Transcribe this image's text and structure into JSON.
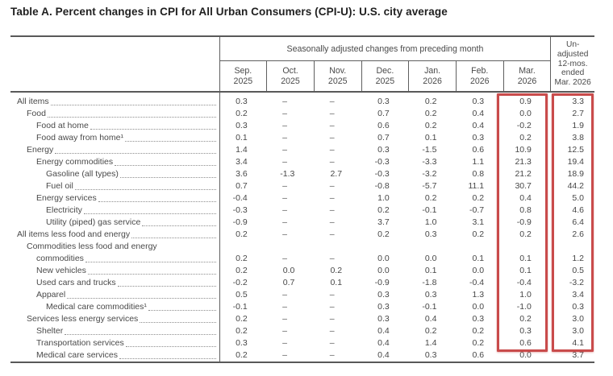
{
  "title": "Table A. Percent changes in CPI for All Urban Consumers (CPI-U): U.S. city average",
  "table": {
    "span_header": "Seasonally adjusted changes from preceding month",
    "unadjusted_header": "Un-\nadjusted\n12-mos.\nended\nMar. 2026",
    "months": [
      {
        "abbr": "Sep.",
        "year": "2025"
      },
      {
        "abbr": "Oct.",
        "year": "2025"
      },
      {
        "abbr": "Nov.",
        "year": "2025"
      },
      {
        "abbr": "Dec.",
        "year": "2025"
      },
      {
        "abbr": "Jan.",
        "year": "2026"
      },
      {
        "abbr": "Feb.",
        "year": "2026"
      },
      {
        "abbr": "Mar.",
        "year": "2026"
      }
    ],
    "rows": [
      {
        "label": "All items",
        "indent": 0,
        "values": [
          "0.3",
          "–",
          "–",
          "0.3",
          "0.2",
          "0.3",
          "0.9",
          "3.3"
        ]
      },
      {
        "label": "Food",
        "indent": 1,
        "values": [
          "0.2",
          "–",
          "–",
          "0.7",
          "0.2",
          "0.4",
          "0.0",
          "2.7"
        ]
      },
      {
        "label": "Food at home",
        "indent": 2,
        "values": [
          "0.3",
          "–",
          "–",
          "0.6",
          "0.2",
          "0.4",
          "-0.2",
          "1.9"
        ]
      },
      {
        "label": "Food away from home¹",
        "indent": 2,
        "values": [
          "0.1",
          "–",
          "–",
          "0.7",
          "0.1",
          "0.3",
          "0.2",
          "3.8"
        ]
      },
      {
        "label": "Energy",
        "indent": 1,
        "values": [
          "1.4",
          "–",
          "–",
          "0.3",
          "-1.5",
          "0.6",
          "10.9",
          "12.5"
        ]
      },
      {
        "label": "Energy commodities",
        "indent": 2,
        "values": [
          "3.4",
          "–",
          "–",
          "-0.3",
          "-3.3",
          "1.1",
          "21.3",
          "19.4"
        ]
      },
      {
        "label": "Gasoline (all types)",
        "indent": 3,
        "values": [
          "3.6",
          "-1.3",
          "2.7",
          "-0.3",
          "-3.2",
          "0.8",
          "21.2",
          "18.9"
        ]
      },
      {
        "label": "Fuel oil",
        "indent": 3,
        "values": [
          "0.7",
          "–",
          "–",
          "-0.8",
          "-5.7",
          "11.1",
          "30.7",
          "44.2"
        ]
      },
      {
        "label": "Energy services",
        "indent": 2,
        "values": [
          "-0.4",
          "–",
          "–",
          "1.0",
          "0.2",
          "0.2",
          "0.4",
          "5.0"
        ]
      },
      {
        "label": "Electricity",
        "indent": 3,
        "values": [
          "-0.3",
          "–",
          "–",
          "0.2",
          "-0.1",
          "-0.7",
          "0.8",
          "4.6"
        ]
      },
      {
        "label": "Utility (piped) gas service",
        "indent": 3,
        "values": [
          "-0.9",
          "–",
          "–",
          "3.7",
          "1.0",
          "3.1",
          "-0.9",
          "6.4"
        ]
      },
      {
        "label": "All items less food and energy",
        "indent": 0,
        "values": [
          "0.2",
          "–",
          "–",
          "0.2",
          "0.3",
          "0.2",
          "0.2",
          "2.6"
        ]
      },
      {
        "label": "Commodities less food and energy",
        "label2": "commodities",
        "indent": 1,
        "values": [
          "0.2",
          "–",
          "–",
          "0.0",
          "0.0",
          "0.1",
          "0.1",
          "1.2"
        ]
      },
      {
        "label": "New vehicles",
        "indent": 2,
        "values": [
          "0.2",
          "0.0",
          "0.2",
          "0.0",
          "0.1",
          "0.0",
          "0.1",
          "0.5"
        ]
      },
      {
        "label": "Used cars and trucks",
        "indent": 2,
        "values": [
          "-0.2",
          "0.7",
          "0.1",
          "-0.9",
          "-1.8",
          "-0.4",
          "-0.4",
          "-3.2"
        ]
      },
      {
        "label": "Apparel",
        "indent": 2,
        "values": [
          "0.5",
          "–",
          "–",
          "0.3",
          "0.3",
          "1.3",
          "1.0",
          "3.4"
        ]
      },
      {
        "label": "Medical care commodities¹",
        "indent": 3,
        "values": [
          "-0.1",
          "–",
          "–",
          "0.3",
          "-0.1",
          "0.0",
          "-1.0",
          "0.3"
        ]
      },
      {
        "label": "Services less energy services",
        "indent": 1,
        "values": [
          "0.2",
          "–",
          "–",
          "0.3",
          "0.4",
          "0.3",
          "0.2",
          "3.0"
        ]
      },
      {
        "label": "Shelter",
        "indent": 2,
        "values": [
          "0.2",
          "–",
          "–",
          "0.4",
          "0.2",
          "0.2",
          "0.3",
          "3.0"
        ]
      },
      {
        "label": "Transportation services",
        "indent": 2,
        "values": [
          "0.3",
          "–",
          "–",
          "0.4",
          "1.4",
          "0.2",
          "0.6",
          "4.1"
        ]
      },
      {
        "label": "Medical care services",
        "indent": 2,
        "values": [
          "0.2",
          "–",
          "–",
          "0.4",
          "0.3",
          "0.6",
          "0.0",
          "3.7"
        ]
      }
    ],
    "missing_value_symbol": "–",
    "highlight": {
      "color": "#c94b4b",
      "highlighted_columns": [
        "Mar. 2026",
        "Un-adjusted 12-mos. ended Mar. 2026"
      ]
    }
  }
}
